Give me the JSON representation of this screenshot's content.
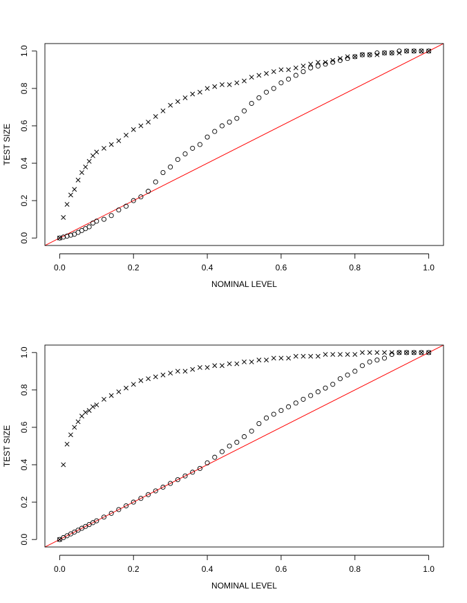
{
  "chart_data": [
    {
      "type": "scatter",
      "xlabel": "NOMINAL LEVEL",
      "ylabel": "TEST SIZE",
      "xlim": [
        -0.04,
        1.04
      ],
      "ylim": [
        -0.04,
        1.04
      ],
      "x_ticks": [
        "0.0",
        "0.2",
        "0.4",
        "0.6",
        "0.8",
        "1.0"
      ],
      "y_ticks": [
        "0.0",
        "0.2",
        "0.4",
        "0.6",
        "0.8",
        "1.0"
      ],
      "reference_line": {
        "slope": 1,
        "intercept": 0,
        "color": "#ff0000"
      },
      "series": [
        {
          "marker": "x",
          "x": [
            0,
            0.01,
            0.02,
            0.03,
            0.04,
            0.05,
            0.06,
            0.07,
            0.08,
            0.09,
            0.1,
            0.12,
            0.14,
            0.16,
            0.18,
            0.2,
            0.22,
            0.24,
            0.26,
            0.28,
            0.3,
            0.32,
            0.34,
            0.36,
            0.38,
            0.4,
            0.42,
            0.44,
            0.46,
            0.48,
            0.5,
            0.52,
            0.54,
            0.56,
            0.58,
            0.6,
            0.62,
            0.64,
            0.66,
            0.68,
            0.7,
            0.72,
            0.74,
            0.76,
            0.78,
            0.8,
            0.82,
            0.84,
            0.86,
            0.88,
            0.9,
            0.92,
            0.94,
            0.96,
            0.98,
            1.0
          ],
          "y": [
            0,
            0.11,
            0.18,
            0.23,
            0.26,
            0.31,
            0.35,
            0.38,
            0.41,
            0.44,
            0.46,
            0.48,
            0.5,
            0.52,
            0.55,
            0.58,
            0.6,
            0.62,
            0.65,
            0.68,
            0.71,
            0.73,
            0.75,
            0.77,
            0.78,
            0.8,
            0.81,
            0.82,
            0.82,
            0.83,
            0.84,
            0.86,
            0.87,
            0.88,
            0.89,
            0.9,
            0.9,
            0.91,
            0.92,
            0.93,
            0.94,
            0.94,
            0.95,
            0.96,
            0.97,
            0.97,
            0.98,
            0.98,
            0.98,
            0.99,
            0.99,
            0.99,
            1.0,
            1.0,
            1.0,
            1.0
          ]
        },
        {
          "marker": "o",
          "x": [
            0,
            0.01,
            0.02,
            0.03,
            0.04,
            0.05,
            0.06,
            0.07,
            0.08,
            0.09,
            0.1,
            0.12,
            0.14,
            0.16,
            0.18,
            0.2,
            0.22,
            0.24,
            0.26,
            0.28,
            0.3,
            0.32,
            0.34,
            0.36,
            0.38,
            0.4,
            0.42,
            0.44,
            0.46,
            0.48,
            0.5,
            0.52,
            0.54,
            0.56,
            0.58,
            0.6,
            0.62,
            0.64,
            0.66,
            0.68,
            0.7,
            0.72,
            0.74,
            0.76,
            0.78,
            0.8,
            0.82,
            0.84,
            0.86,
            0.88,
            0.9,
            0.92,
            0.94,
            0.96,
            0.98,
            1.0
          ],
          "y": [
            0,
            0.005,
            0.01,
            0.015,
            0.02,
            0.03,
            0.04,
            0.05,
            0.06,
            0.08,
            0.09,
            0.1,
            0.12,
            0.15,
            0.17,
            0.2,
            0.22,
            0.25,
            0.3,
            0.35,
            0.38,
            0.42,
            0.45,
            0.48,
            0.5,
            0.54,
            0.57,
            0.6,
            0.62,
            0.64,
            0.68,
            0.72,
            0.75,
            0.78,
            0.8,
            0.83,
            0.85,
            0.87,
            0.89,
            0.91,
            0.92,
            0.93,
            0.94,
            0.95,
            0.96,
            0.97,
            0.98,
            0.98,
            0.99,
            0.99,
            0.99,
            1.0,
            1.0,
            1.0,
            1.0,
            1.0
          ]
        }
      ]
    },
    {
      "type": "scatter",
      "xlabel": "NOMINAL LEVEL",
      "ylabel": "TEST SIZE",
      "xlim": [
        -0.04,
        1.04
      ],
      "ylim": [
        -0.04,
        1.04
      ],
      "x_ticks": [
        "0.0",
        "0.2",
        "0.4",
        "0.6",
        "0.8",
        "1.0"
      ],
      "y_ticks": [
        "0.0",
        "0.2",
        "0.4",
        "0.6",
        "0.8",
        "1.0"
      ],
      "reference_line": {
        "slope": 1,
        "intercept": 0,
        "color": "#ff0000"
      },
      "series": [
        {
          "marker": "x",
          "x": [
            0,
            0.01,
            0.02,
            0.03,
            0.04,
            0.05,
            0.06,
            0.07,
            0.08,
            0.09,
            0.1,
            0.12,
            0.14,
            0.16,
            0.18,
            0.2,
            0.22,
            0.24,
            0.26,
            0.28,
            0.3,
            0.32,
            0.34,
            0.36,
            0.38,
            0.4,
            0.42,
            0.44,
            0.46,
            0.48,
            0.5,
            0.52,
            0.54,
            0.56,
            0.58,
            0.6,
            0.62,
            0.64,
            0.66,
            0.68,
            0.7,
            0.72,
            0.74,
            0.76,
            0.78,
            0.8,
            0.82,
            0.84,
            0.86,
            0.88,
            0.9,
            0.92,
            0.94,
            0.96,
            0.98,
            1.0
          ],
          "y": [
            0,
            0.4,
            0.51,
            0.56,
            0.6,
            0.63,
            0.66,
            0.68,
            0.69,
            0.71,
            0.72,
            0.75,
            0.77,
            0.79,
            0.81,
            0.83,
            0.85,
            0.86,
            0.87,
            0.88,
            0.89,
            0.9,
            0.9,
            0.91,
            0.92,
            0.92,
            0.93,
            0.93,
            0.94,
            0.94,
            0.95,
            0.95,
            0.96,
            0.96,
            0.97,
            0.97,
            0.97,
            0.98,
            0.98,
            0.98,
            0.98,
            0.99,
            0.99,
            0.99,
            0.99,
            0.99,
            1.0,
            1.0,
            1.0,
            1.0,
            1.0,
            1.0,
            1.0,
            1.0,
            1.0,
            1.0
          ]
        },
        {
          "marker": "o",
          "x": [
            0,
            0.01,
            0.02,
            0.03,
            0.04,
            0.05,
            0.06,
            0.07,
            0.08,
            0.09,
            0.1,
            0.12,
            0.14,
            0.16,
            0.18,
            0.2,
            0.22,
            0.24,
            0.26,
            0.28,
            0.3,
            0.32,
            0.34,
            0.36,
            0.38,
            0.4,
            0.42,
            0.44,
            0.46,
            0.48,
            0.5,
            0.52,
            0.54,
            0.56,
            0.58,
            0.6,
            0.62,
            0.64,
            0.66,
            0.68,
            0.7,
            0.72,
            0.74,
            0.76,
            0.78,
            0.8,
            0.82,
            0.84,
            0.86,
            0.88,
            0.9,
            0.92,
            0.94,
            0.96,
            0.98,
            1.0
          ],
          "y": [
            0,
            0.01,
            0.02,
            0.03,
            0.04,
            0.05,
            0.06,
            0.07,
            0.08,
            0.09,
            0.1,
            0.12,
            0.14,
            0.16,
            0.18,
            0.2,
            0.22,
            0.24,
            0.26,
            0.28,
            0.3,
            0.32,
            0.34,
            0.36,
            0.38,
            0.41,
            0.44,
            0.47,
            0.5,
            0.52,
            0.55,
            0.58,
            0.62,
            0.65,
            0.67,
            0.69,
            0.71,
            0.73,
            0.75,
            0.77,
            0.79,
            0.81,
            0.83,
            0.86,
            0.88,
            0.9,
            0.93,
            0.95,
            0.96,
            0.97,
            0.99,
            1.0,
            1.0,
            1.0,
            1.0,
            1.0
          ]
        }
      ]
    }
  ]
}
